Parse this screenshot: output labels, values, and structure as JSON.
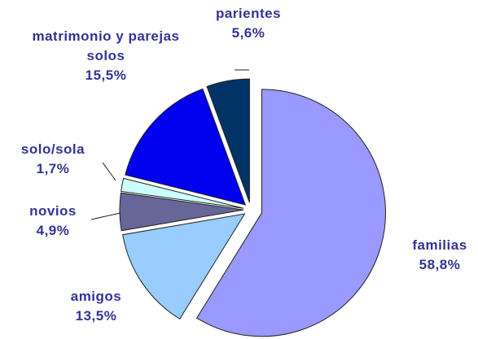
{
  "chart_data": {
    "type": "pie",
    "categories": [
      "familias",
      "amigos",
      "novios",
      "solo/sola",
      "matrimonio y parejas solos",
      "parientes"
    ],
    "values": [
      58.8,
      13.5,
      4.9,
      1.7,
      15.5,
      5.6
    ],
    "value_labels": [
      "58,8%",
      "13,5%",
      "4,9%",
      "1,7%",
      "15,5%",
      "5,6%"
    ],
    "colors": [
      "#9999ff",
      "#99ccff",
      "#666699",
      "#ccffff",
      "#0000ee",
      "#003366"
    ]
  }
}
